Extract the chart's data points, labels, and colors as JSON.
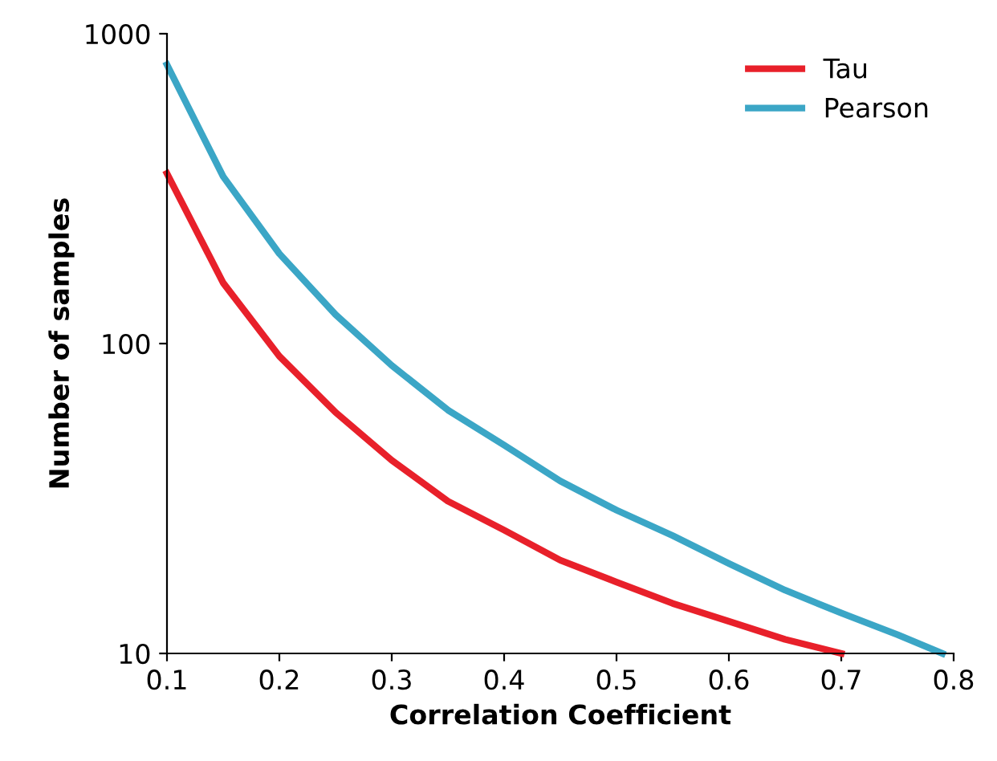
{
  "chart_data": {
    "type": "line",
    "xlabel": "Correlation Coefficient",
    "ylabel": "Number of samples",
    "log": "y",
    "xlim": [
      0.1,
      0.8
    ],
    "xticks": [
      0.1,
      0.2,
      0.3,
      0.4,
      0.5,
      0.6,
      0.7,
      0.8
    ],
    "ylim": [
      10,
      1000
    ],
    "yticks": [
      10,
      100,
      1000
    ],
    "grid": false,
    "legend": "top right",
    "marker": "none",
    "line_style": "solid",
    "series": [
      {
        "name": "Tau",
        "color": "#e8202a",
        "x": [
          0.1,
          0.15,
          0.2,
          0.25,
          0.3,
          0.35,
          0.4,
          0.45,
          0.5,
          0.55,
          0.6,
          0.65,
          0.7
        ],
        "values": [
          354,
          157,
          91,
          60,
          42,
          31,
          25,
          20,
          17,
          14.5,
          12.7,
          11.1,
          10
        ]
      },
      {
        "name": "Pearson",
        "color": "#3ba6c6",
        "x": [
          0.1,
          0.15,
          0.2,
          0.25,
          0.3,
          0.35,
          0.4,
          0.45,
          0.5,
          0.55,
          0.6,
          0.65,
          0.7,
          0.75,
          0.79
        ],
        "values": [
          794,
          346,
          195,
          124,
          85,
          61,
          47,
          36,
          29,
          24,
          19.5,
          16,
          13.5,
          11.5,
          10
        ]
      }
    ]
  }
}
